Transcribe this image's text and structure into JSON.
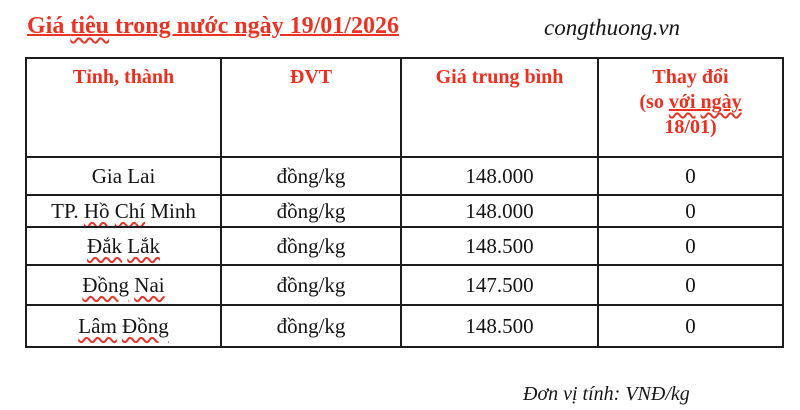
{
  "page": {
    "title_parts": [
      {
        "text": "Giá "
      },
      {
        "text": "tiêu",
        "squiggle": true
      },
      {
        "text": " trong nước ngày 19/01/2026"
      }
    ],
    "site": "congthuong.vn",
    "footnote": "Đơn vị tính: VNĐ/kg"
  },
  "colors": {
    "accent_red": "#ee2e1f",
    "change_blue": "#5b91d5",
    "text_black": "#1a1a1a"
  },
  "table": {
    "headers": [
      {
        "label": "Tỉnh, thành"
      },
      {
        "label": "ĐVT"
      },
      {
        "label": "Giá trung bình"
      },
      {
        "parts": [
          {
            "text": "Thay đổi"
          },
          {
            "br": true
          },
          {
            "text": "(so "
          },
          {
            "text": "với",
            "squiggle": true,
            "underline": true
          },
          {
            "text": " ",
            "underline": true
          },
          {
            "text": "ngày",
            "squiggle": true,
            "underline": true
          },
          {
            "br": true
          },
          {
            "text": "18/01)"
          }
        ]
      }
    ],
    "rows": [
      {
        "name_parts": [
          {
            "text": "Gia Lai"
          }
        ],
        "unit": "đồng/kg",
        "price": "148.000",
        "change": "0"
      },
      {
        "name_parts": [
          {
            "text": "TP. "
          },
          {
            "text": "Hồ",
            "squiggle": true
          },
          {
            "text": " "
          },
          {
            "text": "Chí",
            "squiggle": true
          },
          {
            "text": " Minh"
          }
        ],
        "unit": "đồng/kg",
        "price": "148.000",
        "change": "0"
      },
      {
        "name_parts": [
          {
            "text": "Đắk",
            "squiggle": true
          },
          {
            "text": " "
          },
          {
            "text": "Lắk",
            "squiggle": true
          }
        ],
        "unit": "đồng/kg",
        "price": "148.500",
        "change": "0"
      },
      {
        "name_parts": [
          {
            "text": "Đồng",
            "squiggle": true
          },
          {
            "text": " "
          },
          {
            "text": "Nai",
            "squiggle": true
          }
        ],
        "unit": "đồng/kg",
        "price": "147.500",
        "change": "0"
      },
      {
        "name_parts": [
          {
            "text": "Lâm",
            "squiggle": true
          },
          {
            "text": " "
          },
          {
            "text": "Đồng",
            "squiggle": true
          }
        ],
        "unit": "đồng/kg",
        "price": "148.500",
        "change": "0"
      }
    ]
  }
}
